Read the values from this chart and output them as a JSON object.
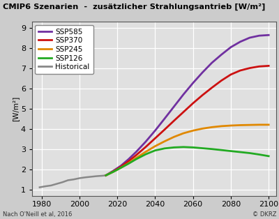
{
  "title": "CMIP6 Szenarien  -  zusätzlicher Strahlungsantrieb [W/m²]",
  "ylabel": "[W/m²]",
  "xlabel_note_left": "Nach O'Neill et al, 2016",
  "xlabel_note_right": "© DKRZ",
  "xlim": [
    1975,
    2104
  ],
  "ylim": [
    0.7,
    9.3
  ],
  "xticks": [
    1980,
    2000,
    2020,
    2040,
    2060,
    2080,
    2100
  ],
  "yticks": [
    1,
    2,
    3,
    4,
    5,
    6,
    7,
    8,
    9
  ],
  "background_color": "#cccccc",
  "plot_background": "#e0e0e0",
  "grid_color": "#ffffff",
  "historical": {
    "x": [
      1979,
      1982,
      1985,
      1988,
      1991,
      1994,
      1997,
      2000,
      2003,
      2006,
      2009,
      2012,
      2014
    ],
    "y": [
      1.13,
      1.18,
      1.22,
      1.3,
      1.38,
      1.48,
      1.52,
      1.58,
      1.62,
      1.65,
      1.68,
      1.7,
      1.72
    ],
    "color": "#888888",
    "label": "Historical",
    "lw": 1.8
  },
  "ssp585": {
    "x": [
      2014,
      2018,
      2022,
      2026,
      2030,
      2035,
      2040,
      2045,
      2050,
      2055,
      2060,
      2065,
      2070,
      2075,
      2080,
      2085,
      2090,
      2095,
      2100
    ],
    "y": [
      1.72,
      1.95,
      2.2,
      2.52,
      2.88,
      3.38,
      3.93,
      4.52,
      5.12,
      5.72,
      6.28,
      6.8,
      7.28,
      7.68,
      8.05,
      8.32,
      8.52,
      8.62,
      8.65
    ],
    "color": "#7030a0",
    "label": "SSP585",
    "lw": 2.0
  },
  "ssp370": {
    "x": [
      2014,
      2018,
      2022,
      2026,
      2030,
      2035,
      2040,
      2045,
      2050,
      2055,
      2060,
      2065,
      2070,
      2075,
      2080,
      2085,
      2090,
      2095,
      2100
    ],
    "y": [
      1.72,
      1.92,
      2.15,
      2.42,
      2.72,
      3.12,
      3.55,
      3.98,
      4.42,
      4.85,
      5.28,
      5.68,
      6.05,
      6.4,
      6.7,
      6.9,
      7.02,
      7.1,
      7.13
    ],
    "color": "#cc1111",
    "label": "SSP370",
    "lw": 2.0
  },
  "ssp245": {
    "x": [
      2014,
      2018,
      2022,
      2026,
      2030,
      2035,
      2040,
      2045,
      2050,
      2055,
      2060,
      2065,
      2070,
      2075,
      2080,
      2085,
      2090,
      2095,
      2100
    ],
    "y": [
      1.72,
      1.9,
      2.1,
      2.32,
      2.58,
      2.88,
      3.16,
      3.4,
      3.62,
      3.8,
      3.93,
      4.03,
      4.1,
      4.15,
      4.18,
      4.2,
      4.21,
      4.22,
      4.22
    ],
    "color": "#e08800",
    "label": "SSP245",
    "lw": 2.0
  },
  "ssp126": {
    "x": [
      2014,
      2018,
      2022,
      2026,
      2030,
      2035,
      2040,
      2045,
      2050,
      2055,
      2060,
      2065,
      2070,
      2075,
      2080,
      2085,
      2090,
      2095,
      2100
    ],
    "y": [
      1.72,
      1.9,
      2.1,
      2.3,
      2.52,
      2.76,
      2.95,
      3.05,
      3.1,
      3.12,
      3.1,
      3.06,
      3.02,
      2.97,
      2.92,
      2.87,
      2.82,
      2.75,
      2.67
    ],
    "color": "#22aa22",
    "label": "SSP126",
    "lw": 2.0
  }
}
